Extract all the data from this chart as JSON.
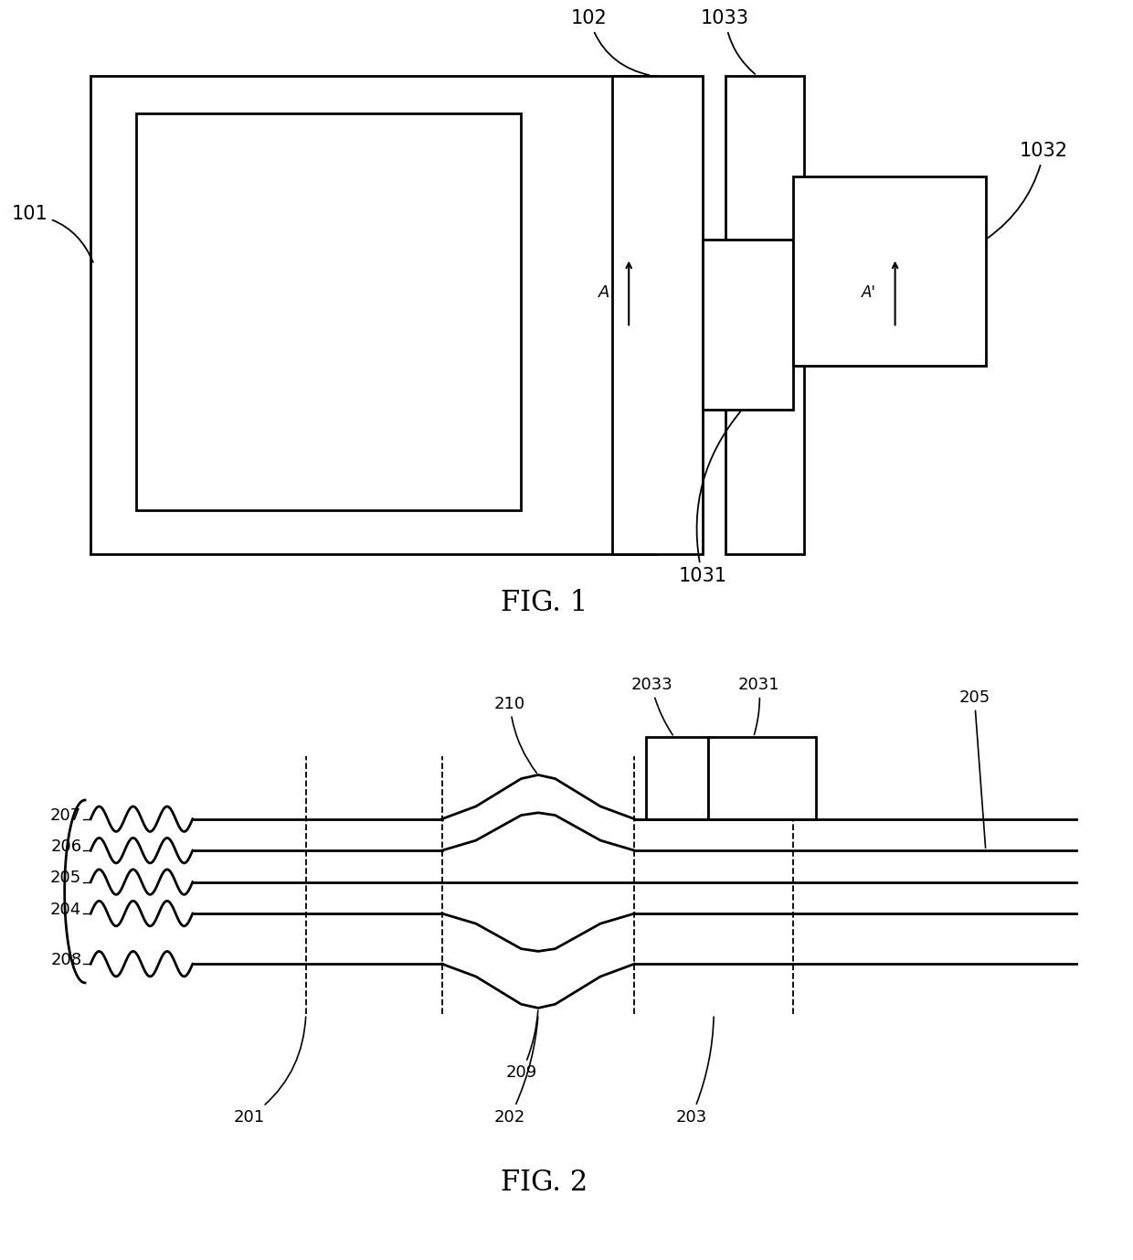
{
  "bg_color": "#ffffff",
  "lc": "#000000",
  "fig1_title": "FIG. 1",
  "fig2_title": "FIG. 2"
}
